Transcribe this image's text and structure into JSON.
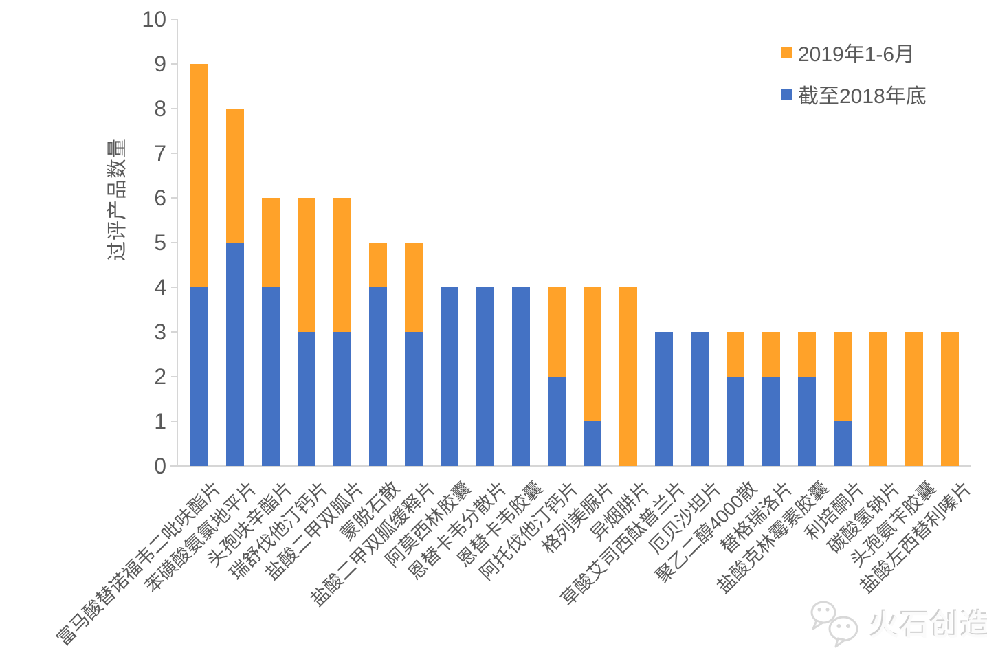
{
  "legend": {
    "items": [
      {
        "label": "2019年1-6月",
        "color": "#FFA229"
      },
      {
        "label": "截至2018年底",
        "color": "#4472C4"
      }
    ]
  },
  "chart_data": {
    "type": "bar",
    "stacked": true,
    "title": "",
    "xlabel": "",
    "ylabel": "过评产品数量",
    "ylim": [
      0,
      10
    ],
    "ytick_step": 1,
    "grid": false,
    "legend_position": "top-right",
    "categories": [
      "富马酸替诺福韦二吡呋酯片",
      "苯磺酸氨氯地平片",
      "头孢呋辛酯片",
      "瑞舒伐他汀钙片",
      "盐酸二甲双胍片",
      "蒙脱石散",
      "盐酸二甲双胍缓释片",
      "阿莫西林胶囊",
      "恩替卡韦分散片",
      "恩替卡韦胶囊",
      "阿托伐他汀钙片",
      "格列美脲片",
      "异烟肼片",
      "草酸艾司西酞普兰片",
      "厄贝沙坦片",
      "聚乙二醇4000散",
      "替格瑞洛片",
      "盐酸克林霉素胶囊",
      "利培酮片",
      "碳酸氢钠片",
      "头孢氨苄胶囊",
      "盐酸左西替利嗪片"
    ],
    "series": [
      {
        "name": "截至2018年底",
        "color": "#4472C4",
        "values": [
          4,
          5,
          4,
          3,
          3,
          4,
          3,
          4,
          4,
          4,
          2,
          1,
          0,
          3,
          3,
          2,
          2,
          2,
          1,
          0,
          0,
          0
        ]
      },
      {
        "name": "2019年1-6月",
        "color": "#FFA229",
        "values": [
          5,
          3,
          2,
          3,
          3,
          1,
          2,
          0,
          0,
          0,
          2,
          3,
          4,
          0,
          0,
          1,
          1,
          1,
          2,
          3,
          3,
          3
        ]
      }
    ],
    "totals": [
      9,
      8,
      6,
      6,
      6,
      5,
      5,
      4,
      4,
      4,
      4,
      4,
      4,
      3,
      3,
      3,
      3,
      3,
      3,
      3,
      3,
      3
    ]
  },
  "watermark": {
    "text": "火石创造"
  },
  "colors": {
    "axis_line": "#d6d6d6",
    "text": "#595959",
    "background": "#ffffff"
  }
}
